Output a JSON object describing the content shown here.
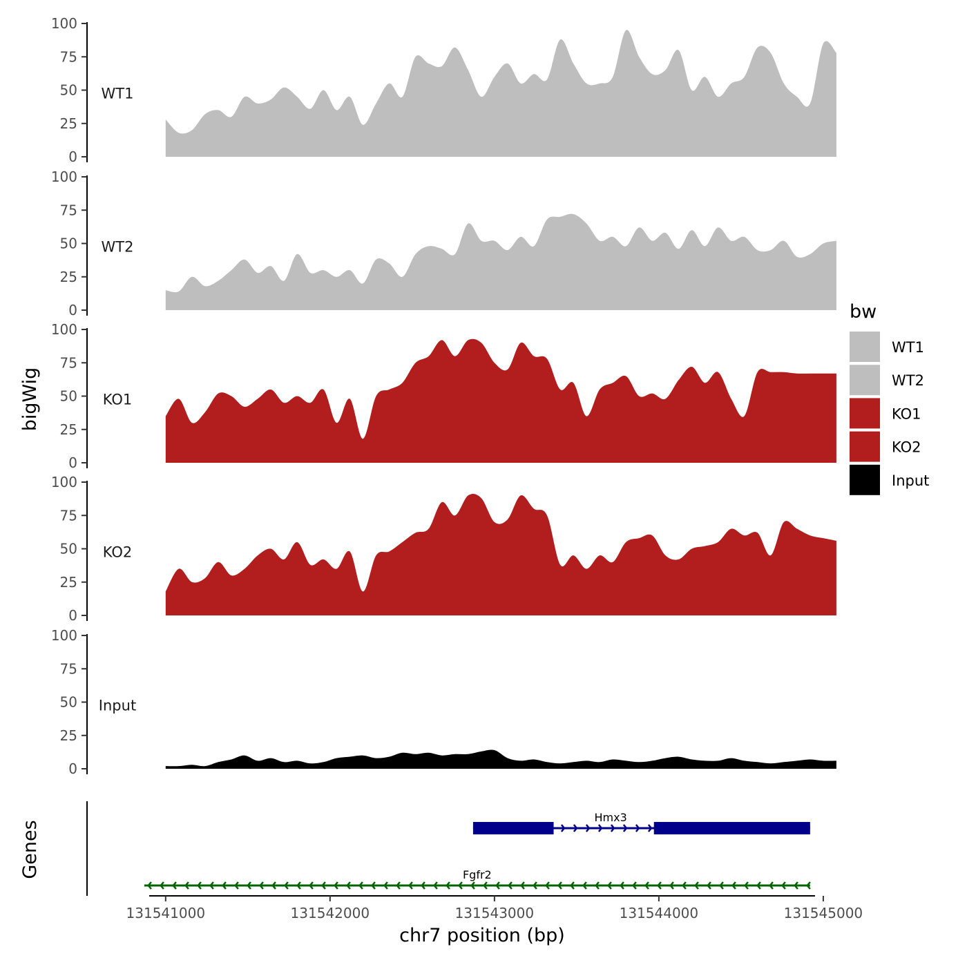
{
  "chart_data": {
    "type": "area",
    "title": "",
    "xlabel": "chr7 position (bp)",
    "ylabel": "bigWig",
    "genes_label": "Genes",
    "xlim": [
      131540900,
      131544950
    ],
    "ylim": [
      0,
      100
    ],
    "x_ticks": [
      131541000,
      131542000,
      131543000,
      131544000,
      131545000
    ],
    "x_tick_labels": [
      "131541000",
      "131542000",
      "131543000",
      "131544000",
      "131545000"
    ],
    "y_ticks": [
      0,
      25,
      50,
      75,
      100
    ],
    "y_tick_labels": [
      "0",
      "25",
      "50",
      "75",
      "100"
    ],
    "x_start": 131541000,
    "x_step": 80,
    "legend": {
      "title": "bw",
      "entries": [
        {
          "label": "WT1",
          "color": "#bebebe"
        },
        {
          "label": "WT2",
          "color": "#bebebe"
        },
        {
          "label": "KO1",
          "color": "#b21e1e"
        },
        {
          "label": "KO2",
          "color": "#b21e1e"
        },
        {
          "label": "Input",
          "color": "#000000"
        }
      ]
    },
    "series": [
      {
        "name": "WT1",
        "color": "#bebebe",
        "values": [
          28,
          18,
          20,
          32,
          35,
          30,
          45,
          40,
          43,
          52,
          45,
          36,
          50,
          35,
          45,
          24,
          40,
          55,
          45,
          75,
          70,
          68,
          82,
          65,
          45,
          60,
          70,
          55,
          62,
          58,
          88,
          70,
          55,
          55,
          60,
          95,
          75,
          62,
          65,
          80,
          50,
          60,
          45,
          55,
          60,
          82,
          78,
          55,
          45,
          40,
          85,
          78
        ]
      },
      {
        "name": "WT2",
        "color": "#bebebe",
        "values": [
          15,
          14,
          25,
          18,
          22,
          30,
          38,
          28,
          33,
          22,
          42,
          28,
          30,
          25,
          30,
          20,
          38,
          35,
          25,
          42,
          48,
          46,
          42,
          65,
          52,
          52,
          45,
          55,
          48,
          68,
          70,
          72,
          65,
          52,
          55,
          48,
          62,
          52,
          58,
          46,
          60,
          48,
          62,
          52,
          55,
          45,
          45,
          52,
          40,
          42,
          50,
          52
        ]
      },
      {
        "name": "KO1",
        "color": "#b21e1e",
        "values": [
          35,
          48,
          30,
          38,
          52,
          50,
          42,
          48,
          55,
          45,
          50,
          45,
          55,
          30,
          48,
          18,
          50,
          55,
          60,
          75,
          80,
          92,
          80,
          92,
          90,
          75,
          70,
          90,
          80,
          78,
          55,
          60,
          35,
          55,
          60,
          65,
          50,
          52,
          48,
          62,
          72,
          60,
          68,
          48,
          35,
          68,
          68,
          68,
          67,
          67,
          67,
          67
        ]
      },
      {
        "name": "KO2",
        "color": "#b21e1e",
        "values": [
          18,
          35,
          25,
          28,
          40,
          30,
          35,
          45,
          50,
          42,
          55,
          38,
          42,
          35,
          48,
          18,
          45,
          48,
          55,
          62,
          65,
          85,
          75,
          90,
          88,
          70,
          72,
          90,
          80,
          75,
          38,
          45,
          35,
          45,
          40,
          55,
          58,
          60,
          45,
          42,
          50,
          52,
          55,
          65,
          60,
          62,
          45,
          70,
          65,
          60,
          58,
          56
        ]
      },
      {
        "name": "Input",
        "color": "#000000",
        "values": [
          2,
          2,
          3,
          2,
          5,
          7,
          10,
          6,
          8,
          5,
          6,
          4,
          5,
          8,
          9,
          10,
          8,
          9,
          12,
          11,
          12,
          10,
          11,
          11,
          13,
          14,
          8,
          6,
          7,
          5,
          4,
          5,
          6,
          5,
          7,
          6,
          5,
          6,
          8,
          9,
          7,
          6,
          6,
          8,
          6,
          5,
          4,
          5,
          6,
          7,
          6,
          6
        ]
      }
    ],
    "genes": [
      {
        "name": "Hmx3",
        "strand": "+",
        "color": "#00008b",
        "start": 131542870,
        "end": 131544920,
        "exons": [
          [
            131542870,
            131543360
          ],
          [
            131543970,
            131544920
          ]
        ]
      },
      {
        "name": "Fgfr2",
        "strand": "-",
        "color": "#006400",
        "start": 131540870,
        "end": 131544920,
        "exons": []
      }
    ]
  }
}
